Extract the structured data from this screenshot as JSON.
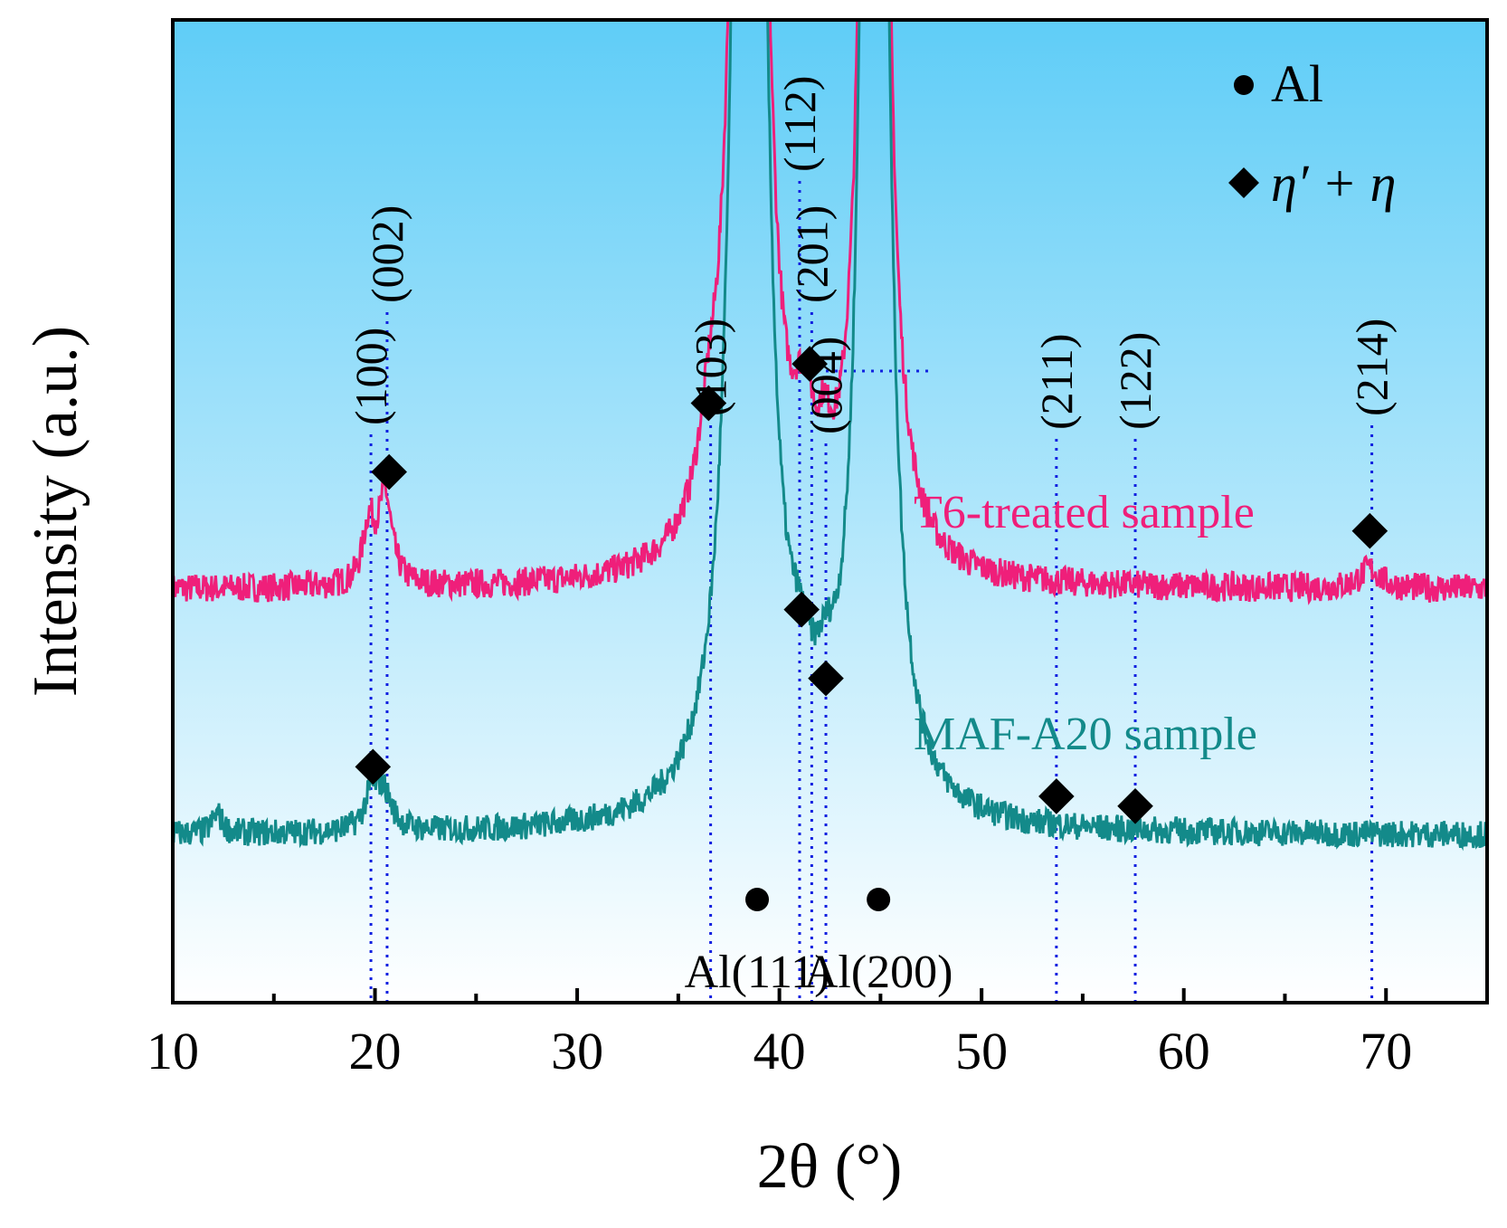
{
  "chart_data": {
    "type": "line",
    "title": "",
    "xlabel": "2θ (°)",
    "ylabel": "Intensity (a.u.)",
    "xlim": [
      10,
      75
    ],
    "ylim": [
      0,
      100
    ],
    "x_ticks": [
      10,
      20,
      30,
      40,
      50,
      60,
      70
    ],
    "x_tick_labels": [
      "10",
      "20",
      "30",
      "40",
      "50",
      "60",
      "70"
    ],
    "background_gradient": {
      "top": "#5fcdf7",
      "bottom": "#ffffff"
    },
    "series": [
      {
        "name": "T6-treated sample",
        "label": "T6-treated sample",
        "color": "#ef1f7a",
        "baseline": 42,
        "noise": 1.5,
        "peaks": [
          {
            "x": 19.7,
            "h": 6,
            "w": 0.35
          },
          {
            "x": 20.5,
            "h": 9,
            "w": 0.4
          },
          {
            "x": 36.5,
            "h": 6,
            "w": 0.6
          },
          {
            "x": 38.5,
            "h": 300,
            "w": 0.5
          },
          {
            "x": 41.0,
            "h": 5,
            "w": 0.4
          },
          {
            "x": 41.4,
            "h": 6,
            "w": 0.35
          },
          {
            "x": 42.2,
            "h": 6,
            "w": 0.4
          },
          {
            "x": 44.7,
            "h": 300,
            "w": 0.4
          },
          {
            "x": 69.2,
            "h": 2,
            "w": 0.6
          }
        ]
      },
      {
        "name": "MAF-A20 sample",
        "label": "MAF-A20 sample",
        "color": "#138a8a",
        "baseline": 17,
        "noise": 1.4,
        "peaks": [
          {
            "x": 12.2,
            "h": 2,
            "w": 0.3
          },
          {
            "x": 19.8,
            "h": 3,
            "w": 0.4
          },
          {
            "x": 20.4,
            "h": 4,
            "w": 0.5
          },
          {
            "x": 38.5,
            "h": 300,
            "w": 0.55
          },
          {
            "x": 41.0,
            "h": 6,
            "w": 0.7
          },
          {
            "x": 42.3,
            "h": 5,
            "w": 0.6
          },
          {
            "x": 44.7,
            "h": 300,
            "w": 0.45
          }
        ]
      }
    ],
    "reference_lines": [
      {
        "x": 19.8,
        "label": "(100)"
      },
      {
        "x": 20.6,
        "label": "(002)"
      },
      {
        "x": 36.6,
        "label": "(103)"
      },
      {
        "x": 41.0,
        "label": "(112)"
      },
      {
        "x": 41.6,
        "label": "(201)"
      },
      {
        "x": 42.3,
        "label": "(004)"
      },
      {
        "x": 53.7,
        "label": "(211)"
      },
      {
        "x": 57.6,
        "label": "(122)"
      },
      {
        "x": 69.3,
        "label": "(214)"
      }
    ],
    "eta_markers": [
      {
        "x": 20.7,
        "y": 54,
        "series": "T6-treated sample"
      },
      {
        "x": 36.5,
        "y": 61,
        "series": "T6-treated sample"
      },
      {
        "x": 41.5,
        "y": 65,
        "series": "T6-treated sample"
      },
      {
        "x": 69.2,
        "y": 48,
        "series": "T6-treated sample"
      },
      {
        "x": 19.9,
        "y": 24,
        "series": "MAF-A20 sample"
      },
      {
        "x": 41.1,
        "y": 40,
        "series": "MAF-A20 sample"
      },
      {
        "x": 42.3,
        "y": 33,
        "series": "MAF-A20 sample"
      },
      {
        "x": 53.7,
        "y": 21,
        "series": "MAF-A20 sample"
      },
      {
        "x": 57.6,
        "y": 20,
        "series": "MAF-A20 sample"
      }
    ],
    "al_markers": [
      {
        "x": 38.9,
        "y": 10.5,
        "label": "Al(111)"
      },
      {
        "x": 44.9,
        "y": 10.5,
        "label": "Al(200)"
      }
    ],
    "legend": {
      "position": "top-right",
      "entries": [
        {
          "marker": "circle",
          "label": "Al"
        },
        {
          "marker": "diamond",
          "label": "η′ + η"
        }
      ]
    }
  }
}
